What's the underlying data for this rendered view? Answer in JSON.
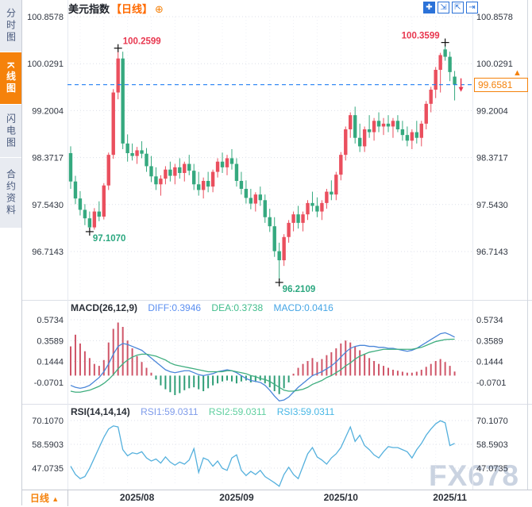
{
  "app": {
    "title": "美元指数",
    "period_tag": "【日线】",
    "add_icon": "⊕",
    "watermark": "FX678"
  },
  "sidebar": {
    "items": [
      {
        "label": "分时图",
        "active": false
      },
      {
        "label": "K线图",
        "active": true
      },
      {
        "label": "闪电图",
        "active": false
      },
      {
        "label": "合约资料",
        "active": false
      }
    ]
  },
  "toolbar": {
    "icons": [
      {
        "name": "crosshair",
        "glyph": "✚"
      },
      {
        "name": "zoom-fit",
        "glyph": "⇲"
      },
      {
        "name": "zoom-scale",
        "glyph": "⇱"
      },
      {
        "name": "exit",
        "glyph": "⇥"
      }
    ]
  },
  "bottom_bar": {
    "period_label": "日线",
    "arrow": "▲"
  },
  "colors": {
    "up": "#ea4f5e",
    "down": "#35a97f",
    "hist_up": "#cf5568",
    "hist_down": "#2f9e77",
    "diff": "#4a86d9",
    "dea": "#3fae7f",
    "rsi_line": "#54b0dd",
    "current_line": "#1e7df2",
    "accent_orange": "#f5820b",
    "ann_high": "#e8374f",
    "ann_low": "#2aa77f",
    "grid": "#dcdfe8",
    "axis_text": "#2f3540",
    "macd_diff_text": "#5b8ff0",
    "macd_dea_text": "#41bd8c",
    "macd_val_text": "#45a5e5",
    "rsi1_text": "#7e9bea",
    "rsi2_text": "#5fcf9f",
    "rsi3_text": "#47b7e5",
    "toolbar_blue": "#2b72d8"
  },
  "chart_data": [
    {
      "type": "candlestick",
      "symbol": "美元指数",
      "period": "日线",
      "current_price": "99.6581",
      "y_ticks": [
        100.8578,
        100.0291,
        99.2004,
        98.3717,
        97.543,
        96.7143
      ],
      "x_ticks": [
        {
          "label": "2025/08",
          "index": 14
        },
        {
          "label": "2025/09",
          "index": 35
        },
        {
          "label": "2025/10",
          "index": 57
        },
        {
          "label": "2025/11",
          "index": 80
        }
      ],
      "annotations": [
        {
          "text": "100.2599",
          "index": 10,
          "kind": "high",
          "side": "right"
        },
        {
          "text": "100.3599",
          "index": 79,
          "kind": "high",
          "side": "left"
        },
        {
          "text": "97.1070",
          "index": 4,
          "kind": "low",
          "side": "right"
        },
        {
          "text": "96.2109",
          "index": 44,
          "kind": "low",
          "side": "right"
        }
      ],
      "candles": [
        [
          98.45,
          98.57,
          97.82,
          97.95
        ],
        [
          97.95,
          98.05,
          97.55,
          97.65
        ],
        [
          97.65,
          97.78,
          97.35,
          97.45
        ],
        [
          97.45,
          97.55,
          97.18,
          97.3
        ],
        [
          97.3,
          97.42,
          97.107,
          97.14
        ],
        [
          97.14,
          97.48,
          97.1,
          97.42
        ],
        [
          97.42,
          97.6,
          97.25,
          97.33
        ],
        [
          97.33,
          97.92,
          97.28,
          97.88
        ],
        [
          97.88,
          98.46,
          97.8,
          98.42
        ],
        [
          98.42,
          99.58,
          98.35,
          99.52
        ],
        [
          99.52,
          100.2599,
          99.4,
          100.12
        ],
        [
          100.12,
          100.24,
          98.52,
          98.62
        ],
        [
          98.62,
          98.78,
          98.3,
          98.45
        ],
        [
          98.45,
          98.62,
          98.32,
          98.4
        ],
        [
          98.4,
          98.56,
          98.26,
          98.5
        ],
        [
          98.5,
          98.66,
          98.36,
          98.44
        ],
        [
          98.44,
          98.54,
          98.12,
          98.22
        ],
        [
          98.22,
          98.4,
          97.94,
          98.04
        ],
        [
          98.04,
          98.2,
          97.8,
          97.9
        ],
        [
          97.9,
          98.06,
          97.7,
          98.0
        ],
        [
          98.0,
          98.22,
          97.9,
          98.16
        ],
        [
          98.16,
          98.3,
          97.95,
          98.05
        ],
        [
          98.05,
          98.26,
          97.9,
          98.2
        ],
        [
          98.2,
          98.36,
          98.0,
          98.1
        ],
        [
          98.1,
          98.3,
          97.95,
          98.26
        ],
        [
          98.26,
          98.42,
          98.06,
          98.14
        ],
        [
          98.14,
          98.26,
          97.8,
          97.9
        ],
        [
          97.9,
          98.12,
          97.7,
          97.8
        ],
        [
          97.8,
          98.02,
          97.65,
          97.96
        ],
        [
          97.96,
          98.12,
          97.76,
          97.86
        ],
        [
          97.86,
          98.16,
          97.76,
          98.12
        ],
        [
          98.12,
          98.36,
          98.02,
          98.3
        ],
        [
          98.3,
          98.46,
          98.1,
          98.2
        ],
        [
          98.2,
          98.42,
          98.06,
          98.36
        ],
        [
          98.36,
          98.52,
          98.16,
          98.26
        ],
        [
          98.26,
          98.36,
          97.86,
          97.96
        ],
        [
          97.96,
          98.12,
          97.72,
          97.82
        ],
        [
          97.82,
          97.97,
          97.56,
          97.66
        ],
        [
          97.66,
          97.82,
          97.46,
          97.56
        ],
        [
          97.56,
          97.76,
          97.42,
          97.72
        ],
        [
          97.72,
          97.86,
          97.52,
          97.62
        ],
        [
          97.62,
          97.72,
          97.22,
          97.32
        ],
        [
          97.32,
          97.47,
          97.06,
          97.16
        ],
        [
          97.16,
          97.32,
          96.62,
          96.72
        ],
        [
          96.72,
          96.87,
          96.2109,
          96.56
        ],
        [
          96.56,
          97.02,
          96.46,
          96.97
        ],
        [
          96.97,
          97.27,
          96.87,
          97.22
        ],
        [
          97.22,
          97.42,
          97.07,
          97.37
        ],
        [
          97.37,
          97.52,
          97.12,
          97.22
        ],
        [
          97.22,
          97.42,
          97.07,
          97.37
        ],
        [
          97.37,
          97.62,
          97.27,
          97.57
        ],
        [
          97.57,
          97.77,
          97.42,
          97.52
        ],
        [
          97.52,
          97.67,
          97.32,
          97.42
        ],
        [
          97.42,
          97.62,
          97.27,
          97.57
        ],
        [
          97.57,
          97.82,
          97.47,
          97.77
        ],
        [
          97.77,
          97.97,
          97.62,
          97.72
        ],
        [
          97.72,
          98.12,
          97.62,
          98.07
        ],
        [
          98.07,
          98.47,
          97.97,
          98.42
        ],
        [
          98.42,
          98.92,
          98.32,
          98.87
        ],
        [
          98.87,
          99.17,
          98.72,
          99.12
        ],
        [
          99.12,
          99.27,
          98.62,
          98.72
        ],
        [
          98.72,
          98.97,
          98.47,
          98.57
        ],
        [
          98.57,
          98.92,
          98.47,
          98.87
        ],
        [
          98.87,
          99.12,
          98.72,
          98.82
        ],
        [
          98.82,
          99.07,
          98.67,
          99.02
        ],
        [
          99.02,
          99.17,
          98.82,
          98.92
        ],
        [
          98.92,
          99.07,
          98.77,
          98.97
        ],
        [
          98.97,
          99.12,
          98.82,
          98.92
        ],
        [
          98.92,
          99.07,
          98.72,
          99.02
        ],
        [
          99.02,
          99.12,
          98.82,
          98.87
        ],
        [
          98.87,
          99.02,
          98.67,
          98.77
        ],
        [
          98.77,
          98.92,
          98.57,
          98.67
        ],
        [
          98.67,
          98.87,
          98.52,
          98.82
        ],
        [
          98.82,
          99.02,
          98.62,
          98.72
        ],
        [
          98.72,
          99.02,
          98.57,
          98.97
        ],
        [
          98.97,
          99.37,
          98.87,
          99.32
        ],
        [
          99.32,
          99.62,
          99.17,
          99.57
        ],
        [
          99.57,
          99.97,
          99.42,
          99.92
        ],
        [
          99.92,
          100.22,
          99.52,
          100.18
        ],
        [
          100.28,
          100.3599,
          100.08,
          100.15
        ],
        [
          100.15,
          100.24,
          99.72,
          99.88
        ],
        [
          99.8,
          99.9,
          99.38,
          99.6581
        ]
      ]
    },
    {
      "type": "macd",
      "name": "MACD(26,12,9)",
      "diff_label": "DIFF:0.3946",
      "dea_label": "DEA:0.3738",
      "macd_label": "MACD:0.0416",
      "y_ticks": [
        0.5734,
        0.3589,
        0.1444,
        -0.0701
      ],
      "values": {
        "hist": [
          0.3,
          0.42,
          0.33,
          0.25,
          0.18,
          0.12,
          0.1,
          0.16,
          0.34,
          0.48,
          0.545,
          0.5,
          0.36,
          0.28,
          0.2,
          0.14,
          0.08,
          0.03,
          -0.04,
          -0.1,
          -0.14,
          -0.17,
          -0.2,
          -0.18,
          -0.15,
          -0.13,
          -0.12,
          -0.14,
          -0.16,
          -0.13,
          -0.1,
          -0.08,
          -0.06,
          -0.05,
          -0.06,
          -0.08,
          -0.06,
          -0.05,
          -0.07,
          -0.06,
          -0.05,
          -0.08,
          -0.12,
          -0.16,
          -0.19,
          -0.13,
          -0.07,
          0.02,
          0.08,
          0.12,
          0.15,
          0.18,
          0.14,
          0.17,
          0.21,
          0.24,
          0.28,
          0.33,
          0.36,
          0.34,
          0.3,
          0.26,
          0.22,
          0.18,
          0.15,
          0.12,
          0.1,
          0.08,
          0.06,
          0.05,
          0.04,
          0.03,
          0.03,
          0.04,
          0.06,
          0.09,
          0.12,
          0.15,
          0.17,
          0.14,
          0.1,
          0.0416
        ],
        "diff": [
          -0.1,
          -0.12,
          -0.13,
          -0.12,
          -0.1,
          -0.06,
          -0.02,
          0.04,
          0.12,
          0.22,
          0.3,
          0.33,
          0.32,
          0.3,
          0.28,
          0.26,
          0.22,
          0.18,
          0.14,
          0.1,
          0.06,
          0.04,
          0.03,
          0.04,
          0.05,
          0.05,
          0.03,
          0.01,
          0.0,
          0.01,
          0.02,
          0.04,
          0.05,
          0.06,
          0.05,
          0.03,
          0.0,
          -0.03,
          -0.05,
          -0.06,
          -0.07,
          -0.1,
          -0.15,
          -0.21,
          -0.26,
          -0.25,
          -0.22,
          -0.17,
          -0.12,
          -0.08,
          -0.04,
          0.0,
          0.02,
          0.04,
          0.07,
          0.1,
          0.14,
          0.19,
          0.24,
          0.28,
          0.3,
          0.31,
          0.31,
          0.3,
          0.3,
          0.29,
          0.29,
          0.28,
          0.28,
          0.27,
          0.26,
          0.25,
          0.26,
          0.28,
          0.31,
          0.34,
          0.37,
          0.4,
          0.43,
          0.44,
          0.42,
          0.3946
        ],
        "dea": [
          -0.16,
          -0.17,
          -0.17,
          -0.16,
          -0.15,
          -0.13,
          -0.11,
          -0.08,
          -0.04,
          0.01,
          0.07,
          0.12,
          0.16,
          0.19,
          0.21,
          0.22,
          0.22,
          0.21,
          0.2,
          0.18,
          0.16,
          0.13,
          0.11,
          0.1,
          0.09,
          0.08,
          0.07,
          0.06,
          0.05,
          0.04,
          0.04,
          0.04,
          0.04,
          0.05,
          0.05,
          0.04,
          0.03,
          0.02,
          0.0,
          -0.01,
          -0.03,
          -0.04,
          -0.06,
          -0.09,
          -0.12,
          -0.15,
          -0.16,
          -0.16,
          -0.15,
          -0.14,
          -0.12,
          -0.09,
          -0.07,
          -0.05,
          -0.02,
          0.0,
          0.03,
          0.06,
          0.1,
          0.13,
          0.17,
          0.2,
          0.22,
          0.24,
          0.25,
          0.26,
          0.27,
          0.27,
          0.27,
          0.27,
          0.27,
          0.27,
          0.27,
          0.28,
          0.29,
          0.31,
          0.33,
          0.35,
          0.36,
          0.37,
          0.373,
          0.3738
        ]
      }
    },
    {
      "type": "rsi",
      "name": "RSI(14,14,14)",
      "rsi1_label": "RSI1:59.0311",
      "rsi2_label": "RSI2:59.0311",
      "rsi3_label": "RSI3:59.0311",
      "y_ticks": [
        70.107,
        58.5903,
        47.0735
      ],
      "values": {
        "rsi": [
          48,
          44,
          42,
          43,
          47,
          52,
          57,
          62,
          66,
          67.5,
          67,
          56,
          53,
          54.5,
          54,
          55,
          52,
          50.5,
          51.5,
          49.5,
          52.5,
          50,
          48.5,
          50,
          49,
          51,
          56.5,
          45,
          52,
          51,
          48,
          50.5,
          47,
          46,
          52,
          53.5,
          46,
          43.5,
          45.5,
          44,
          46,
          43,
          41.5,
          40,
          38.3,
          44,
          47.5,
          44,
          42,
          48,
          54,
          57,
          52.5,
          51,
          49,
          52,
          54,
          57,
          62,
          67,
          60,
          63,
          58,
          56,
          53.5,
          52,
          55,
          57.5,
          57,
          57,
          56,
          55,
          52,
          56,
          59,
          63,
          66,
          68.5,
          70,
          69,
          58,
          59.0311
        ]
      }
    }
  ]
}
